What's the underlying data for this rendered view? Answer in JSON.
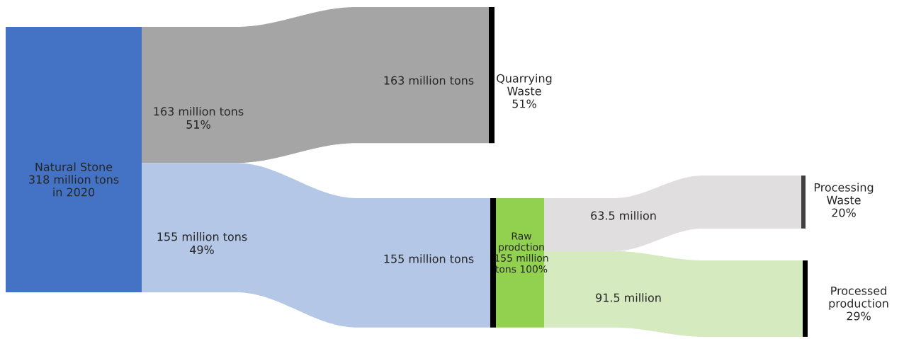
{
  "chart_data": {
    "type": "other",
    "categories": [
      "Natural Stone\n318 million tons\nin 2020",
      "Quarrying\nWaste\n51%",
      "Raw\nprodction\n155 million\ntons 100%",
      "Processing\nWaste\n20%",
      "Processed\nproduction\n29%"
    ],
    "colors": [
      "#4472c4",
      "#000000",
      "#92d050",
      "#404040",
      "#000000"
    ],
    "series": [
      {
        "color": "#a5a5a5",
        "values": [
          null,
          163,
          null,
          null,
          null
        ],
        "value_labels": [
          null,
          "163 million tons",
          null,
          null,
          null
        ]
      },
      {
        "color": "#b4c7e7",
        "values": [
          null,
          null,
          155,
          null,
          null
        ],
        "value_labels": [
          null,
          null,
          "155 million tons",
          null,
          null
        ]
      },
      {
        "color": "#e0dede",
        "values": [
          null,
          null,
          null,
          63.5,
          null
        ],
        "value_labels": [
          null,
          null,
          null,
          "63.5 million",
          null
        ]
      },
      {
        "color": "#d5eabf",
        "values": [
          null,
          null,
          null,
          null,
          91.5
        ],
        "value_labels": [
          null,
          null,
          null,
          null,
          "91.5 million"
        ]
      }
    ],
    "annotations": [
      "163 million tons\n51%",
      "155 million tons\n49%"
    ]
  }
}
